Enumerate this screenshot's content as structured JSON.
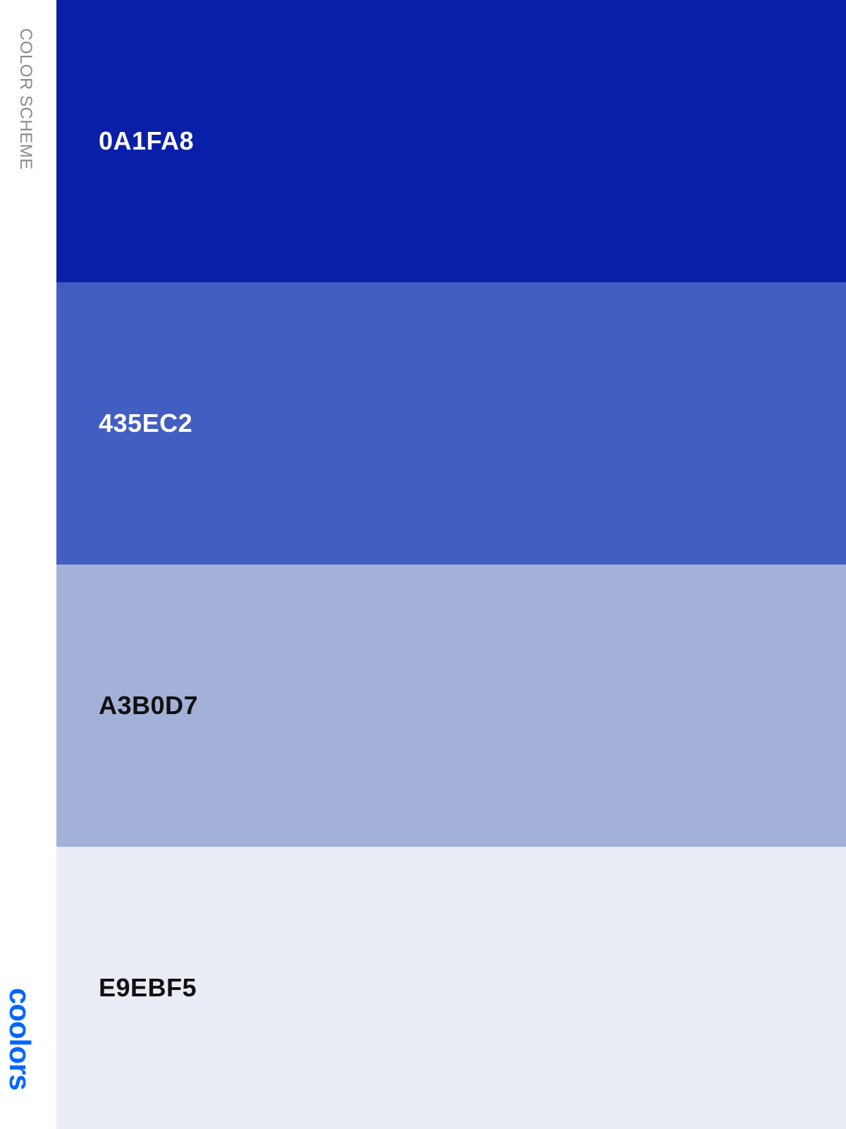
{
  "sidebar": {
    "title": "COLOR SCHEME",
    "brand": "coolors"
  },
  "colors": {
    "brand": "#0066FF"
  },
  "swatches": [
    {
      "label": "0A1FA8",
      "hex": "#0A1FA8",
      "text_color": "#FFFFFF"
    },
    {
      "label": "435EC2",
      "hex": "#435EC2",
      "text_color": "#FFFFFF"
    },
    {
      "label": "A3B0D7",
      "hex": "#A3B0D7",
      "text_color": "#111111"
    },
    {
      "label": "E9EBF5",
      "hex": "#E9EBF5",
      "text_color": "#111111"
    }
  ]
}
